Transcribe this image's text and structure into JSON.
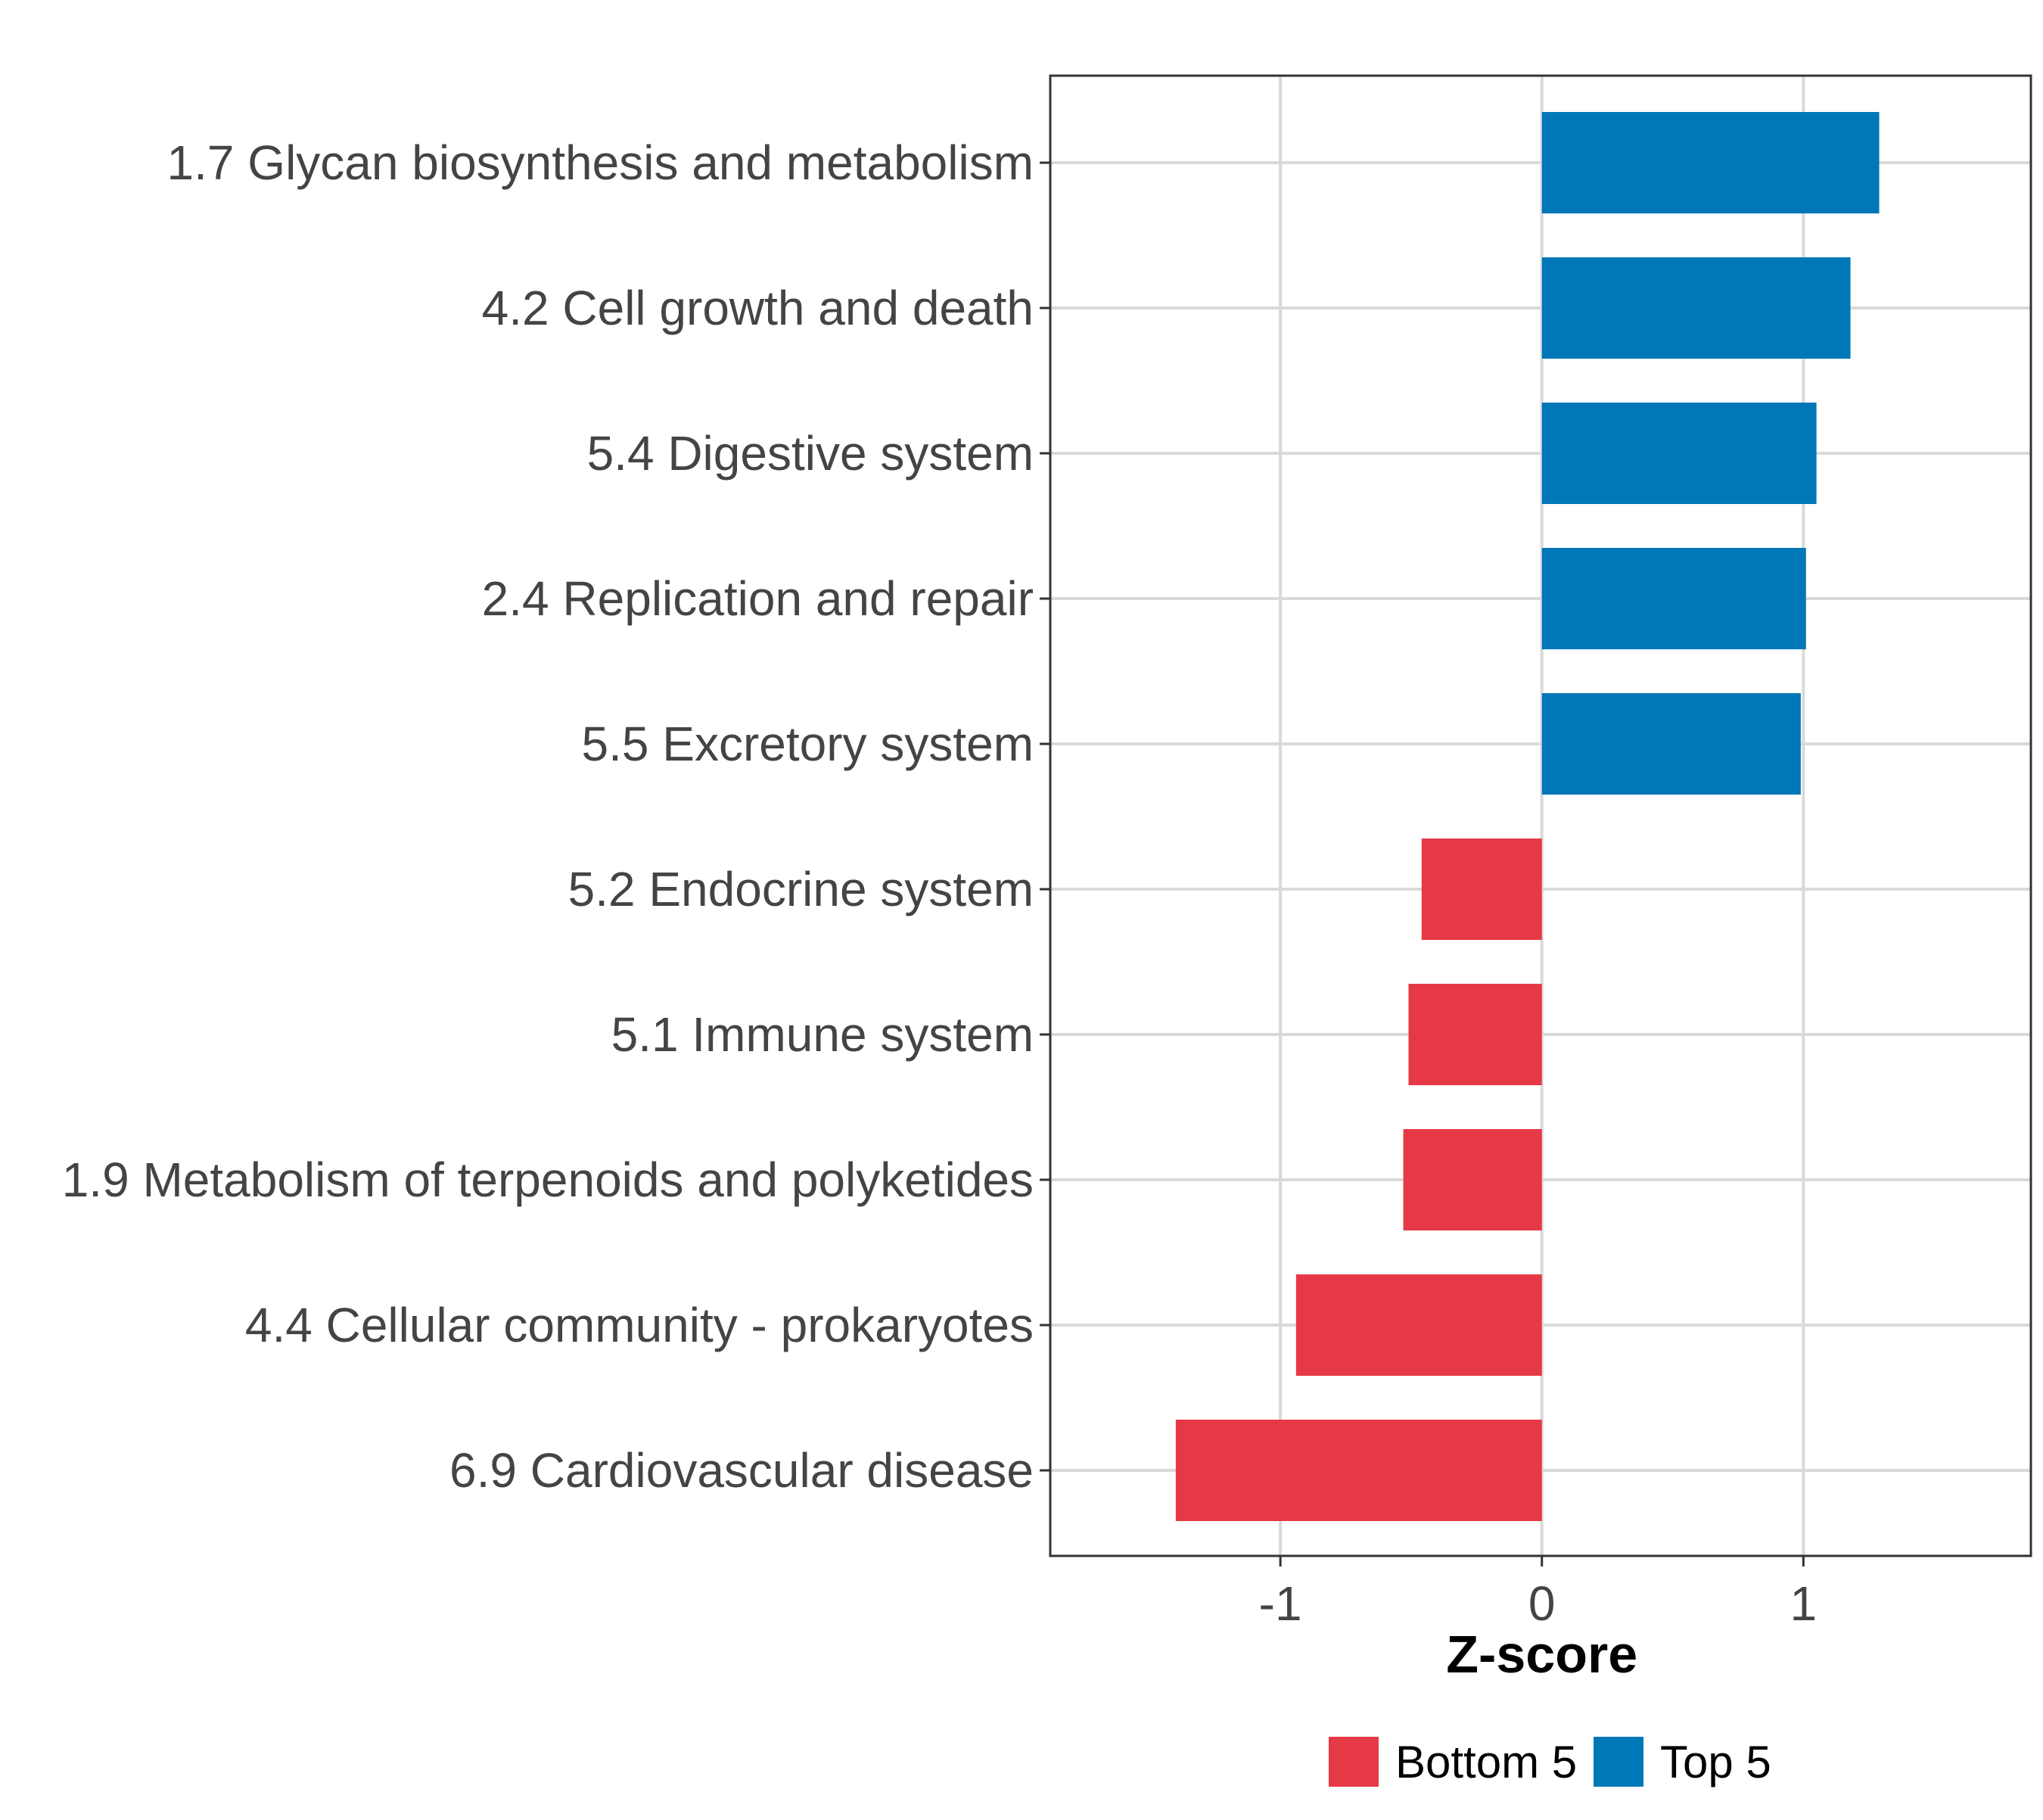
{
  "chart_data": {
    "type": "bar",
    "orientation": "horizontal",
    "title": "",
    "xlabel": "Z-score",
    "ylabel": "",
    "xlim": [
      -1.88,
      1.87
    ],
    "xticks": [
      -1,
      0,
      1
    ],
    "xtick_labels": [
      "-1",
      "0",
      "1"
    ],
    "grid": true,
    "legend_position": "bottom",
    "categories": [
      "1.7 Glycan biosynthesis and metabolism",
      "4.2 Cell growth and death",
      "5.4 Digestive system",
      "2.4 Replication and repair",
      "5.5 Excretory system",
      "5.2 Endocrine system",
      "5.1 Immune system",
      "1.9 Metabolism of terpenoids and polyketides",
      "4.4 Cellular community - prokaryotes",
      "6.9 Cardiovascular disease"
    ],
    "values": [
      1.29,
      1.18,
      1.05,
      1.01,
      0.99,
      -0.46,
      -0.51,
      -0.53,
      -0.94,
      -1.4
    ],
    "groups": [
      "Top 5",
      "Top 5",
      "Top 5",
      "Top 5",
      "Top 5",
      "Bottom 5",
      "Bottom 5",
      "Bottom 5",
      "Bottom 5",
      "Bottom 5"
    ],
    "legend": [
      {
        "label": "Bottom 5",
        "color": "#e63946"
      },
      {
        "label": "Top 5",
        "color": "#0077b6"
      }
    ]
  }
}
